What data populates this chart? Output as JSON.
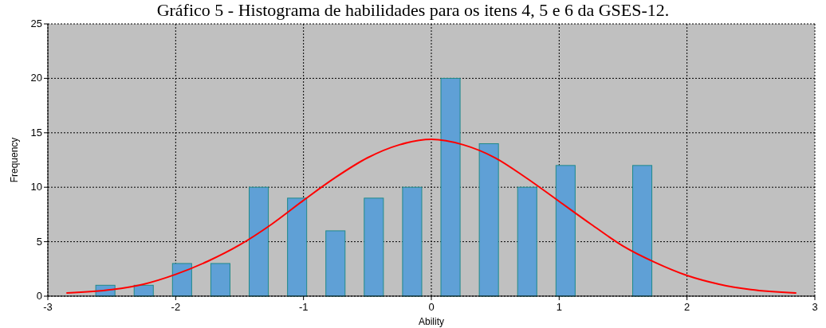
{
  "chart_data": {
    "type": "histogram",
    "title": "Gráfico 5 - Histograma de habilidades para os itens 4, 5 e 6 da GSES-12.",
    "xlabel": "Ability",
    "ylabel": "Frequency",
    "bins": [
      -3,
      -2.7,
      -2.4,
      -2.1,
      -1.8,
      -1.5,
      -1.2,
      -0.9,
      -0.6,
      -0.3,
      0,
      0.3,
      0.6,
      0.9,
      1.2,
      1.5,
      1.8,
      2.1,
      2.4,
      2.7,
      3
    ],
    "series": [
      {
        "color": "#5fa0d6",
        "values": [
          0,
          1,
          1,
          3,
          3,
          10,
          9,
          6,
          9,
          10,
          20,
          14,
          10,
          12,
          0,
          12,
          0,
          0,
          0,
          0
        ]
      },
      {
        "type": "line",
        "color": "#ff0000",
        "x": [
          -2.85,
          -2.5,
          -2.25,
          -2,
          -1.75,
          -1.5,
          -1.25,
          -1,
          -0.75,
          -0.5,
          -0.25,
          0,
          0.25,
          0.5,
          0.75,
          1,
          1.25,
          1.5,
          1.75,
          2,
          2.25,
          2.5,
          2.85
        ],
        "values": [
          0.3,
          0.6,
          1.1,
          2,
          3.2,
          4.7,
          6.6,
          8.8,
          10.9,
          12.7,
          13.9,
          14.4,
          13.9,
          12.7,
          10.8,
          8.7,
          6.6,
          4.6,
          3.1,
          1.9,
          1.1,
          0.6,
          0.3
        ]
      }
    ],
    "xlim": [
      -3,
      3
    ],
    "xticks": [
      -3,
      -2,
      -1,
      0,
      1,
      2,
      3
    ],
    "ylim": [
      0,
      25
    ],
    "yticks": [
      0,
      5,
      10,
      15,
      20,
      25
    ],
    "grid": true
  }
}
